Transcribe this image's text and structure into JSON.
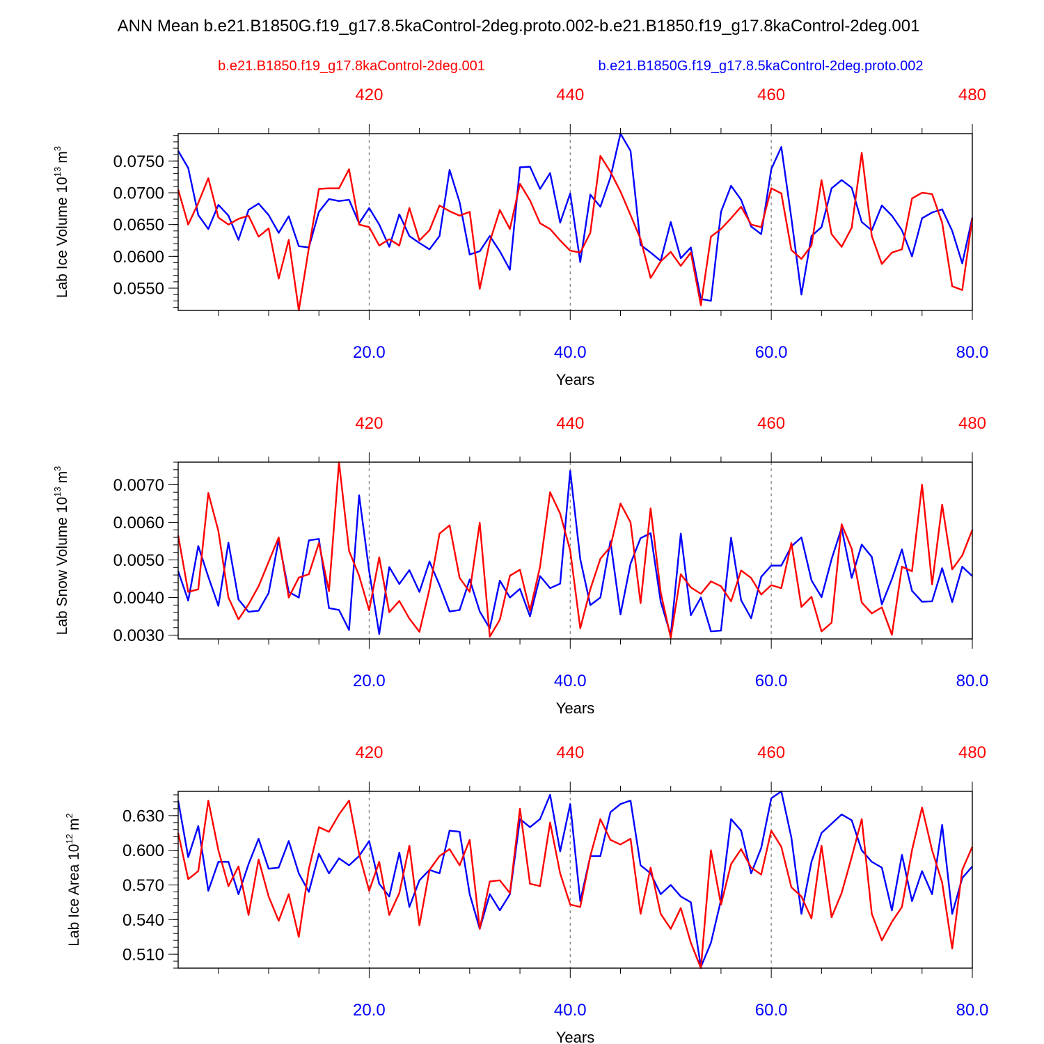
{
  "figure": {
    "title": "ANN Mean b.e21.B1850G.f19_g17.8.5kaControl-2deg.proto.002-b.e21.B1850.f19_g17.8kaControl-2deg.001"
  },
  "colors": {
    "control": "#ff0000",
    "proto": "#0000ff",
    "axis": "#000000",
    "grid": "#777777"
  },
  "legend": {
    "control_label": "b.e21.B1850.f19_g17.8kaControl-2deg.001",
    "proto_label": "b.e21.B1850G.f19_g17.8.5kaControl-2deg.proto.002"
  },
  "chart_data": [
    {
      "type": "line",
      "title": "",
      "xlabel": "Years",
      "ylabel": "Lab Ice Volume 10^13 m^3",
      "ylabel_main": "Lab Ice Volume 10",
      "ylabel_exp": "13",
      "ylabel_unit": "m",
      "ylabel_unit_exp": "3",
      "xlim": [
        1,
        80
      ],
      "top_xlim": [
        401,
        480
      ],
      "ylim": [
        0.0515,
        0.0793
      ],
      "yticks": [
        0.055,
        0.06,
        0.065,
        0.07,
        0.075
      ],
      "yticks_labels": [
        "0.0550",
        "0.0600",
        "0.0650",
        "0.0700",
        "0.0750"
      ],
      "yminor_step": 0.001,
      "xticks": [
        20,
        40,
        60,
        80
      ],
      "xticks_labels": [
        "20.0",
        "40.0",
        "60.0",
        "80.0"
      ],
      "top_xticks": [
        420,
        440,
        460,
        480
      ],
      "top_xticks_labels": [
        "420",
        "440",
        "460",
        "480"
      ],
      "vgrid": [
        20,
        40,
        60
      ],
      "series": [
        {
          "name": "b.e21.B1850G.f19_g17.8.5kaControl-2deg.proto.002",
          "color": "#0000ff",
          "values": [
            0.0766,
            0.0739,
            0.0665,
            0.0643,
            0.0681,
            0.0664,
            0.0626,
            0.0673,
            0.0683,
            0.0665,
            0.0637,
            0.0663,
            0.0616,
            0.0614,
            0.067,
            0.069,
            0.0687,
            0.0689,
            0.0652,
            0.0676,
            0.065,
            0.0615,
            0.0666,
            0.0632,
            0.0621,
            0.0611,
            0.0632,
            0.0736,
            0.0685,
            0.0603,
            0.0608,
            0.0632,
            0.0608,
            0.0579,
            0.074,
            0.0741,
            0.0706,
            0.0731,
            0.0653,
            0.0699,
            0.0591,
            0.0697,
            0.0678,
            0.0724,
            0.0793,
            0.0766,
            0.0618,
            0.0606,
            0.0593,
            0.0654,
            0.0597,
            0.0614,
            0.0533,
            0.053,
            0.067,
            0.0711,
            0.0689,
            0.0647,
            0.0635,
            0.0737,
            0.0772,
            0.066,
            0.054,
            0.0632,
            0.0646,
            0.0707,
            0.072,
            0.0708,
            0.0654,
            0.0641,
            0.068,
            0.0664,
            0.0641,
            0.06,
            0.066,
            0.0669,
            0.0674,
            0.064,
            0.0589,
            0.0661
          ]
        },
        {
          "name": "b.e21.B1850.f19_g17.8kaControl-2deg.001",
          "color": "#ff0000",
          "values": [
            0.0705,
            0.065,
            0.0684,
            0.0723,
            0.0661,
            0.065,
            0.0659,
            0.0664,
            0.0631,
            0.0644,
            0.0565,
            0.0626,
            0.0515,
            0.0613,
            0.0706,
            0.0707,
            0.0707,
            0.0737,
            0.065,
            0.0646,
            0.0617,
            0.0627,
            0.0617,
            0.0676,
            0.0625,
            0.0641,
            0.068,
            0.0671,
            0.0664,
            0.067,
            0.0549,
            0.0623,
            0.0673,
            0.0643,
            0.0714,
            0.0688,
            0.0652,
            0.0643,
            0.0625,
            0.0609,
            0.0606,
            0.0637,
            0.0758,
            0.0733,
            0.0702,
            0.0665,
            0.0627,
            0.0566,
            0.0592,
            0.0607,
            0.0585,
            0.0606,
            0.0523,
            0.0631,
            0.0643,
            0.066,
            0.0678,
            0.065,
            0.0646,
            0.0707,
            0.0699,
            0.061,
            0.0596,
            0.0617,
            0.072,
            0.0635,
            0.0615,
            0.0645,
            0.0763,
            0.0632,
            0.0588,
            0.0606,
            0.0611,
            0.0691,
            0.07,
            0.0698,
            0.0653,
            0.0553,
            0.0547,
            0.066
          ]
        }
      ]
    },
    {
      "type": "line",
      "title": "",
      "xlabel": "Years",
      "ylabel": "Lab Snow Volume 10^13 m^3",
      "ylabel_main": "Lab Snow Volume 10",
      "ylabel_exp": "13",
      "ylabel_unit": "m",
      "ylabel_unit_exp": "3",
      "xlim": [
        1,
        80
      ],
      "top_xlim": [
        401,
        480
      ],
      "ylim": [
        0.0029,
        0.0076
      ],
      "yticks": [
        0.003,
        0.004,
        0.005,
        0.006,
        0.007
      ],
      "yticks_labels": [
        "0.0030",
        "0.0040",
        "0.0050",
        "0.0060",
        "0.0070"
      ],
      "yminor_step": 0.0002,
      "xticks": [
        20,
        40,
        60,
        80
      ],
      "xticks_labels": [
        "20.0",
        "40.0",
        "60.0",
        "80.0"
      ],
      "top_xticks": [
        420,
        440,
        460,
        480
      ],
      "top_xticks_labels": [
        "420",
        "440",
        "460",
        "480"
      ],
      "vgrid": [
        20,
        40,
        60
      ],
      "series": [
        {
          "name": "b.e21.B1850G.f19_g17.8.5kaControl-2deg.proto.002",
          "color": "#0000ff",
          "values": [
            0.0047,
            0.00392,
            0.00537,
            0.00455,
            0.00378,
            0.00546,
            0.00395,
            0.00362,
            0.00365,
            0.00412,
            0.00553,
            0.00415,
            0.004,
            0.00552,
            0.00556,
            0.00372,
            0.00367,
            0.00314,
            0.00672,
            0.0047,
            0.00303,
            0.00481,
            0.00436,
            0.00473,
            0.00415,
            0.00496,
            0.00433,
            0.00363,
            0.00367,
            0.00448,
            0.00363,
            0.00318,
            0.00445,
            0.004,
            0.00423,
            0.0035,
            0.00457,
            0.00425,
            0.00437,
            0.00737,
            0.00502,
            0.0038,
            0.004,
            0.0055,
            0.00355,
            0.0049,
            0.00558,
            0.00571,
            0.00389,
            0.003,
            0.0057,
            0.00353,
            0.004,
            0.0031,
            0.00312,
            0.00559,
            0.00393,
            0.00345,
            0.00455,
            0.00485,
            0.00485,
            0.00536,
            0.0056,
            0.00446,
            0.00401,
            0.00502,
            0.00585,
            0.00452,
            0.00541,
            0.00508,
            0.00382,
            0.00449,
            0.00528,
            0.00418,
            0.00389,
            0.0039,
            0.00478,
            0.00388,
            0.00482,
            0.00457
          ]
        },
        {
          "name": "b.e21.B1850.f19_g17.8kaControl-2deg.001",
          "color": "#ff0000",
          "values": [
            0.00565,
            0.00415,
            0.00422,
            0.00678,
            0.00577,
            0.004,
            0.00342,
            0.00382,
            0.0043,
            0.00495,
            0.0056,
            0.004,
            0.00453,
            0.00462,
            0.00545,
            0.00417,
            0.0076,
            0.00524,
            0.00458,
            0.00366,
            0.00507,
            0.00361,
            0.00391,
            0.00344,
            0.00309,
            0.00422,
            0.0057,
            0.00592,
            0.00452,
            0.00415,
            0.00599,
            0.00296,
            0.00341,
            0.00458,
            0.00474,
            0.00365,
            0.00482,
            0.0068,
            0.00623,
            0.00525,
            0.00318,
            0.00422,
            0.00503,
            0.00535,
            0.0065,
            0.006,
            0.00385,
            0.00637,
            0.00414,
            0.00293,
            0.00462,
            0.00427,
            0.0041,
            0.00443,
            0.0043,
            0.0039,
            0.00472,
            0.00452,
            0.00408,
            0.00433,
            0.00425,
            0.00545,
            0.00375,
            0.00402,
            0.0031,
            0.00333,
            0.00595,
            0.0053,
            0.00387,
            0.00358,
            0.00374,
            0.00301,
            0.00482,
            0.0047,
            0.007,
            0.00435,
            0.00647,
            0.00475,
            0.00512,
            0.0058
          ]
        }
      ]
    },
    {
      "type": "line",
      "title": "",
      "xlabel": "Years",
      "ylabel": "Lab Ice Area 10^12 m^2",
      "ylabel_main": "Lab Ice Area 10",
      "ylabel_exp": "12",
      "ylabel_unit": "m",
      "ylabel_unit_exp": "2",
      "xlim": [
        1,
        80
      ],
      "top_xlim": [
        401,
        480
      ],
      "ylim": [
        0.498,
        0.651
      ],
      "yticks": [
        0.51,
        0.54,
        0.57,
        0.6,
        0.63
      ],
      "yticks_labels": [
        "0.510",
        "0.540",
        "0.570",
        "0.600",
        "0.630"
      ],
      "yminor_step": 0.006,
      "xticks": [
        20,
        40,
        60,
        80
      ],
      "xticks_labels": [
        "20.0",
        "40.0",
        "60.0",
        "80.0"
      ],
      "top_xticks": [
        420,
        440,
        460,
        480
      ],
      "top_xticks_labels": [
        "420",
        "440",
        "460",
        "480"
      ],
      "vgrid": [
        20,
        40,
        60
      ],
      "series": [
        {
          "name": "b.e21.B1850G.f19_g17.8.5kaControl-2deg.proto.002",
          "color": "#0000ff",
          "values": [
            0.643,
            0.594,
            0.621,
            0.565,
            0.59,
            0.59,
            0.562,
            0.588,
            0.61,
            0.584,
            0.585,
            0.608,
            0.58,
            0.564,
            0.597,
            0.58,
            0.593,
            0.587,
            0.595,
            0.608,
            0.571,
            0.56,
            0.598,
            0.551,
            0.574,
            0.583,
            0.58,
            0.617,
            0.616,
            0.562,
            0.532,
            0.562,
            0.548,
            0.562,
            0.627,
            0.62,
            0.627,
            0.648,
            0.599,
            0.64,
            0.556,
            0.595,
            0.595,
            0.633,
            0.64,
            0.643,
            0.587,
            0.58,
            0.562,
            0.57,
            0.56,
            0.555,
            0.499,
            0.52,
            0.557,
            0.627,
            0.617,
            0.58,
            0.602,
            0.645,
            0.651,
            0.611,
            0.545,
            0.59,
            0.615,
            0.623,
            0.631,
            0.626,
            0.6,
            0.59,
            0.585,
            0.548,
            0.596,
            0.556,
            0.582,
            0.562,
            0.622,
            0.545,
            0.576,
            0.586
          ]
        },
        {
          "name": "b.e21.B1850.f19_g17.8kaControl-2deg.001",
          "color": "#ff0000",
          "values": [
            0.615,
            0.575,
            0.582,
            0.643,
            0.6,
            0.569,
            0.586,
            0.544,
            0.592,
            0.56,
            0.539,
            0.562,
            0.525,
            0.584,
            0.62,
            0.616,
            0.631,
            0.643,
            0.597,
            0.565,
            0.59,
            0.544,
            0.563,
            0.604,
            0.535,
            0.583,
            0.595,
            0.601,
            0.587,
            0.609,
            0.532,
            0.573,
            0.574,
            0.563,
            0.636,
            0.571,
            0.569,
            0.624,
            0.58,
            0.553,
            0.551,
            0.595,
            0.627,
            0.609,
            0.605,
            0.61,
            0.545,
            0.585,
            0.545,
            0.532,
            0.55,
            0.52,
            0.498,
            0.6,
            0.553,
            0.588,
            0.601,
            0.585,
            0.579,
            0.617,
            0.603,
            0.568,
            0.56,
            0.541,
            0.604,
            0.542,
            0.563,
            0.594,
            0.627,
            0.545,
            0.522,
            0.538,
            0.551,
            0.6,
            0.637,
            0.6,
            0.572,
            0.515,
            0.583,
            0.603
          ]
        }
      ]
    }
  ]
}
